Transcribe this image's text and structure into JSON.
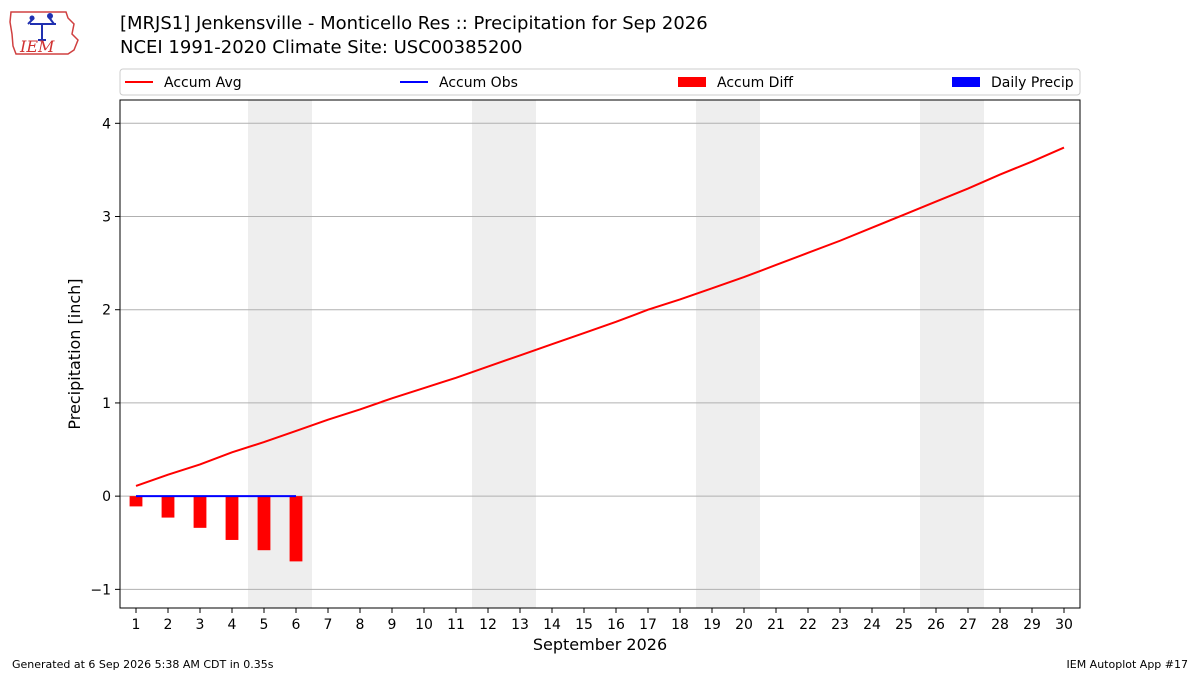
{
  "header": {
    "title_line1": "[MRJS1] Jenkensville - Monticello Res :: Precipitation for Sep 2026",
    "title_line2": "NCEI 1991-2020 Climate Site: USC00385200"
  },
  "logo": {
    "text": "IEM"
  },
  "footer": {
    "generated": "Generated at 6 Sep 2026 5:38 AM CDT in 0.35s",
    "app": "IEM Autoplot App #17"
  },
  "colors": {
    "accum_avg": "#ff0000",
    "accum_obs": "#0000ff",
    "accum_diff": "#ff0000",
    "daily_precip": "#0000ff",
    "weekend_shade": "#eeeeee",
    "grid": "#b0b0b0"
  },
  "chart_data": {
    "type": "line",
    "xlabel": "September 2026",
    "ylabel": "Precipitation [inch]",
    "xlim": [
      0.5,
      30.5
    ],
    "ylim": [
      -1.2,
      4.25
    ],
    "yticks": [
      -1,
      0,
      1,
      2,
      3,
      4
    ],
    "ytick_labels": [
      "−1",
      "0",
      "1",
      "2",
      "3",
      "4"
    ],
    "x": [
      1,
      2,
      3,
      4,
      5,
      6,
      7,
      8,
      9,
      10,
      11,
      12,
      13,
      14,
      15,
      16,
      17,
      18,
      19,
      20,
      21,
      22,
      23,
      24,
      25,
      26,
      27,
      28,
      29,
      30
    ],
    "x_labels": [
      "1",
      "2",
      "3",
      "4",
      "5",
      "6",
      "7",
      "8",
      "9",
      "10",
      "11",
      "12",
      "13",
      "14",
      "15",
      "16",
      "17",
      "18",
      "19",
      "20",
      "21",
      "22",
      "23",
      "24",
      "25",
      "26",
      "27",
      "28",
      "29",
      "30"
    ],
    "grid": "y",
    "legend_position": "top",
    "legend": [
      {
        "label": "Accum Avg",
        "kind": "line",
        "color": "#ff0000"
      },
      {
        "label": "Accum Obs",
        "kind": "line",
        "color": "#0000ff"
      },
      {
        "label": "Accum Diff",
        "kind": "bar",
        "color": "#ff0000"
      },
      {
        "label": "Daily Precip",
        "kind": "bar",
        "color": "#0000ff"
      }
    ],
    "weekend_bands": [
      [
        4.5,
        6.5
      ],
      [
        11.5,
        13.5
      ],
      [
        18.5,
        20.5
      ],
      [
        25.5,
        27.5
      ]
    ],
    "series": [
      {
        "name": "Accum Avg",
        "type": "line",
        "color": "#ff0000",
        "x": [
          1,
          2,
          3,
          4,
          5,
          6,
          7,
          8,
          9,
          10,
          11,
          12,
          13,
          14,
          15,
          16,
          17,
          18,
          19,
          20,
          21,
          22,
          23,
          24,
          25,
          26,
          27,
          28,
          29,
          30
        ],
        "values": [
          0.11,
          0.23,
          0.34,
          0.47,
          0.58,
          0.7,
          0.82,
          0.93,
          1.05,
          1.16,
          1.27,
          1.39,
          1.51,
          1.63,
          1.75,
          1.87,
          2.0,
          2.11,
          2.23,
          2.35,
          2.48,
          2.61,
          2.74,
          2.88,
          3.02,
          3.16,
          3.3,
          3.45,
          3.59,
          3.74
        ]
      },
      {
        "name": "Accum Obs",
        "type": "line",
        "color": "#0000ff",
        "x": [
          1,
          2,
          3,
          4,
          5,
          6
        ],
        "values": [
          0,
          0,
          0,
          0,
          0,
          0
        ]
      },
      {
        "name": "Accum Diff",
        "type": "bar",
        "color": "#ff0000",
        "x": [
          1,
          2,
          3,
          4,
          5,
          6
        ],
        "values": [
          -0.11,
          -0.23,
          -0.34,
          -0.47,
          -0.58,
          -0.7
        ]
      },
      {
        "name": "Daily Precip",
        "type": "bar",
        "color": "#0000ff",
        "x": [
          1,
          2,
          3,
          4,
          5,
          6
        ],
        "values": [
          0,
          0,
          0,
          0,
          0,
          0
        ]
      }
    ]
  }
}
